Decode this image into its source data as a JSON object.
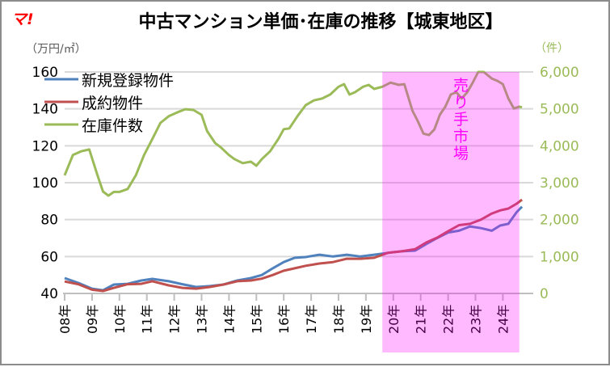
{
  "logo": "マ!",
  "chart_data": {
    "type": "line",
    "title": "中古マンション単価･在庫の推移【城東地区】",
    "ylabel_left": "（万円/㎡）",
    "ylabel_right": "（件）",
    "ylim_left": [
      40,
      160
    ],
    "ylim_right": [
      0,
      6000
    ],
    "yticks_left": [
      "40",
      "60",
      "80",
      "100",
      "120",
      "140",
      "160"
    ],
    "yticks_right": [
      "0",
      "1,000",
      "2,000",
      "3,000",
      "4,000",
      "5,000",
      "6,000"
    ],
    "xticks": [
      "08年",
      "09年",
      "10年",
      "11年",
      "12年",
      "13年",
      "14年",
      "15年",
      "16年",
      "17年",
      "18年",
      "19年",
      "20年",
      "21年",
      "22年",
      "23年",
      "24年"
    ],
    "grid": true,
    "legend_position": "top-left",
    "highlight": {
      "from": 2019.6,
      "to": 2024.6,
      "label": "売り手市場",
      "color": "#ff00ff"
    },
    "series": [
      {
        "name": "新規登録物件",
        "axis": "left",
        "color": "#4f81bd",
        "x": [
          2008.0,
          2008.5,
          2009.0,
          2009.4,
          2009.8,
          2010.3,
          2010.8,
          2011.2,
          2011.8,
          2012.3,
          2012.8,
          2013.3,
          2013.8,
          2014.3,
          2014.8,
          2015.2,
          2015.6,
          2016.0,
          2016.4,
          2016.8,
          2017.3,
          2017.8,
          2018.3,
          2018.8,
          2019.3,
          2019.8,
          2020.3,
          2020.8,
          2021.2,
          2021.6,
          2022.0,
          2022.4,
          2022.8,
          2023.2,
          2023.6,
          2023.9,
          2024.2,
          2024.5,
          2024.7
        ],
        "y": [
          48.3,
          45.7,
          42.6,
          41.7,
          44.8,
          45.2,
          47,
          47.9,
          46.6,
          45,
          43.5,
          44,
          44.8,
          47,
          48.3,
          50,
          53.6,
          57,
          59.3,
          59.7,
          61,
          60,
          61,
          60,
          61,
          62,
          62.8,
          63.2,
          66.7,
          70,
          73,
          74,
          76.3,
          75.4,
          74,
          76.8,
          77.7,
          84,
          87
        ]
      },
      {
        "name": "成約物件",
        "axis": "left",
        "color": "#c0504d",
        "x": [
          2008.0,
          2008.5,
          2009.0,
          2009.4,
          2009.8,
          2010.3,
          2010.8,
          2011.2,
          2011.8,
          2012.3,
          2012.8,
          2013.3,
          2013.8,
          2014.3,
          2014.8,
          2015.2,
          2015.6,
          2016.0,
          2016.4,
          2016.8,
          2017.3,
          2017.8,
          2018.3,
          2018.8,
          2019.3,
          2019.8,
          2020.3,
          2020.8,
          2021.2,
          2021.6,
          2022.0,
          2022.4,
          2022.8,
          2023.2,
          2023.6,
          2023.9,
          2024.2,
          2024.5,
          2024.7
        ],
        "y": [
          46.5,
          45,
          42,
          41.3,
          43,
          45,
          45.2,
          46.6,
          44.4,
          43,
          42.6,
          43.5,
          44.8,
          46.6,
          47,
          48,
          50,
          52.3,
          53.6,
          55,
          56.2,
          57,
          58.8,
          58.8,
          59.3,
          62,
          62.8,
          64,
          67.6,
          70.2,
          73.7,
          77,
          77.7,
          80,
          83.3,
          85,
          86,
          88.6,
          90.8
        ]
      },
      {
        "name": "在庫件数",
        "axis": "right",
        "color": "#9bbb59",
        "x": [
          2008.0,
          2008.3,
          2008.6,
          2008.9,
          2009.2,
          2009.4,
          2009.6,
          2009.8,
          2010.0,
          2010.3,
          2010.6,
          2010.9,
          2011.2,
          2011.5,
          2011.8,
          2012.1,
          2012.4,
          2012.7,
          2013.0,
          2013.2,
          2013.5,
          2013.7,
          2014.0,
          2014.2,
          2014.5,
          2014.8,
          2015.0,
          2015.2,
          2015.5,
          2015.8,
          2016.0,
          2016.2,
          2016.5,
          2016.8,
          2017.1,
          2017.4,
          2017.7,
          2018.0,
          2018.2,
          2018.4,
          2018.6,
          2018.9,
          2019.1,
          2019.3,
          2019.6,
          2019.9,
          2020.2,
          2020.4,
          2020.7,
          2020.9,
          2021.1,
          2021.3,
          2021.5,
          2021.7,
          2021.9,
          2022.1,
          2022.3,
          2022.5,
          2022.7,
          2022.9,
          2023.1,
          2023.3,
          2023.6,
          2023.8,
          2024.0,
          2024.2,
          2024.4,
          2024.6,
          2024.7
        ],
        "y": [
          3200,
          3750,
          3850,
          3900,
          3200,
          2760,
          2650,
          2750,
          2750,
          2830,
          3200,
          3750,
          4180,
          4620,
          4800,
          4900,
          4990,
          4970,
          4840,
          4400,
          4070,
          3960,
          3750,
          3640,
          3530,
          3570,
          3460,
          3640,
          3850,
          4180,
          4450,
          4470,
          4800,
          5100,
          5230,
          5280,
          5390,
          5600,
          5670,
          5390,
          5450,
          5600,
          5650,
          5540,
          5600,
          5710,
          5650,
          5670,
          4950,
          4660,
          4330,
          4290,
          4440,
          4840,
          5060,
          5390,
          5450,
          5280,
          5450,
          5710,
          6000,
          6000,
          5820,
          5760,
          5670,
          5280,
          5010,
          5060,
          5040
        ]
      }
    ]
  }
}
